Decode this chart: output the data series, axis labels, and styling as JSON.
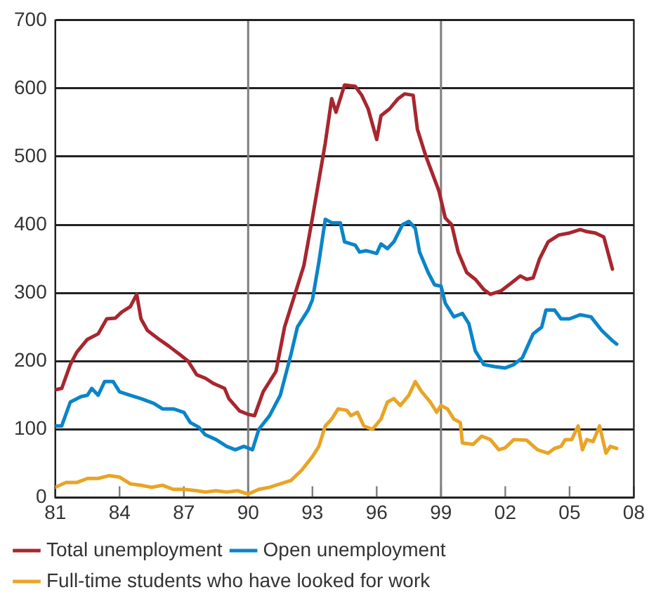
{
  "chart_data": {
    "type": "line",
    "xlim": [
      1981,
      2008
    ],
    "xticks": [
      {
        "value": 1981,
        "label": "81"
      },
      {
        "value": 1984,
        "label": "84"
      },
      {
        "value": 1987,
        "label": "87"
      },
      {
        "value": 1990,
        "label": "90"
      },
      {
        "value": 1993,
        "label": "93"
      },
      {
        "value": 1996,
        "label": "96"
      },
      {
        "value": 1999,
        "label": "99"
      },
      {
        "value": 2002,
        "label": "02"
      },
      {
        "value": 2005,
        "label": "05"
      },
      {
        "value": 2008,
        "label": "08"
      }
    ],
    "ylim": [
      0,
      700
    ],
    "yticks": [
      0,
      100,
      200,
      300,
      400,
      500,
      600,
      700
    ],
    "grid": "y",
    "legend": "bottom",
    "marker": "none",
    "line_style": "solid",
    "ref_lines": [
      {
        "axis": "x",
        "value": 1990,
        "color": "#7f7f7f"
      },
      {
        "axis": "x",
        "value": 1999,
        "color": "#7f7f7f"
      }
    ],
    "series": [
      {
        "name": "Total unemployment",
        "color": "#a8262e",
        "x": [
          1981,
          1981.3,
          1981.7,
          1982,
          1982.5,
          1983,
          1983.4,
          1983.8,
          1984.1,
          1984.5,
          1984.8,
          1985,
          1985.3,
          1985.8,
          1986.3,
          1986.8,
          1987.2,
          1987.6,
          1988,
          1988.4,
          1988.9,
          1989.1,
          1989.6,
          1990,
          1990.3,
          1990.7,
          1991.3,
          1991.7,
          1992.2,
          1992.6,
          1993,
          1993.6,
          1993.9,
          1994.1,
          1994.5,
          1995,
          1995.3,
          1995.6,
          1996,
          1996.2,
          1996.6,
          1997,
          1997.3,
          1997.7,
          1997.9,
          1998.3,
          1998.6,
          1998.9,
          1999.2,
          1999.5,
          1999.8,
          2000.2,
          2000.6,
          2001,
          2001.3,
          2001.8,
          2002.3,
          2002.7,
          2003,
          2003.3,
          2003.6,
          2004,
          2004.5,
          2005,
          2005.5,
          2005.8,
          2006.2,
          2006.6,
          2007
        ],
        "values": [
          158,
          160,
          195,
          213,
          232,
          240,
          262,
          263,
          272,
          280,
          298,
          262,
          245,
          233,
          222,
          210,
          200,
          180,
          175,
          167,
          160,
          145,
          127,
          122,
          120,
          155,
          185,
          250,
          300,
          340,
          410,
          520,
          585,
          565,
          605,
          603,
          590,
          570,
          525,
          560,
          570,
          585,
          592,
          590,
          540,
          500,
          475,
          450,
          410,
          400,
          360,
          330,
          320,
          305,
          298,
          303,
          315,
          325,
          320,
          322,
          350,
          375,
          385,
          388,
          393,
          390,
          388,
          382,
          335
        ]
      },
      {
        "name": "Open unemployment",
        "color": "#0a85c9",
        "x": [
          1981,
          1981.3,
          1981.7,
          1982.2,
          1982.5,
          1982.7,
          1983,
          1983.3,
          1983.7,
          1984,
          1984.5,
          1985,
          1985.6,
          1986,
          1986.5,
          1987,
          1987.3,
          1987.7,
          1988,
          1988.5,
          1989,
          1989.4,
          1989.8,
          1990.2,
          1990.5,
          1991,
          1991.5,
          1992,
          1992.3,
          1992.8,
          1993,
          1993.3,
          1993.6,
          1993.9,
          1994.3,
          1994.5,
          1995,
          1995.2,
          1995.5,
          1996,
          1996.2,
          1996.5,
          1996.8,
          1997.2,
          1997.5,
          1997.8,
          1998,
          1998.4,
          1998.7,
          1999,
          1999.2,
          1999.6,
          2000,
          2000.3,
          2000.6,
          2001,
          2001.5,
          2002,
          2002.4,
          2002.8,
          2003.3,
          2003.7,
          2003.9,
          2004.3,
          2004.6,
          2005,
          2005.5,
          2006,
          2006.5,
          2007,
          2007.2
        ],
        "values": [
          105,
          105,
          140,
          148,
          150,
          160,
          150,
          170,
          170,
          155,
          150,
          145,
          138,
          130,
          130,
          125,
          110,
          103,
          92,
          85,
          75,
          70,
          75,
          70,
          100,
          120,
          150,
          210,
          250,
          275,
          290,
          345,
          408,
          403,
          403,
          375,
          370,
          360,
          362,
          358,
          372,
          365,
          375,
          400,
          405,
          395,
          360,
          330,
          312,
          310,
          285,
          265,
          270,
          255,
          215,
          195,
          192,
          190,
          195,
          205,
          240,
          250,
          275,
          275,
          262,
          262,
          268,
          265,
          245,
          230,
          225
        ]
      },
      {
        "name": "Full-time students who have looked for work",
        "color": "#e9a426",
        "x": [
          1981,
          1981.5,
          1982,
          1982.5,
          1983,
          1983.5,
          1984,
          1984.5,
          1985,
          1985.5,
          1986,
          1986.5,
          1987,
          1987.6,
          1988,
          1988.5,
          1989,
          1989.5,
          1990,
          1990.5,
          1991,
          1991.5,
          1992,
          1992.5,
          1993,
          1993.3,
          1993.6,
          1993.9,
          1994.2,
          1994.6,
          1994.8,
          1995.1,
          1995.4,
          1995.8,
          1996.2,
          1996.5,
          1996.8,
          1997.1,
          1997.5,
          1997.8,
          1998.1,
          1998.5,
          1998.8,
          1999,
          1999.3,
          1999.6,
          1999.9,
          2000,
          2000.5,
          2000.9,
          2001.3,
          2001.7,
          2002,
          2002.4,
          2003,
          2003.5,
          2004,
          2004.3,
          2004.6,
          2004.8,
          2005.1,
          2005.4,
          2005.6,
          2005.8,
          2006.1,
          2006.4,
          2006.7,
          2006.9,
          2007.2
        ],
        "values": [
          15,
          22,
          22,
          28,
          28,
          32,
          30,
          20,
          18,
          15,
          18,
          12,
          12,
          10,
          8,
          10,
          8,
          10,
          5,
          12,
          15,
          20,
          25,
          40,
          60,
          75,
          105,
          115,
          130,
          128,
          120,
          125,
          105,
          100,
          115,
          140,
          145,
          135,
          150,
          170,
          155,
          140,
          125,
          135,
          130,
          115,
          110,
          80,
          78,
          90,
          85,
          70,
          73,
          85,
          84,
          70,
          65,
          72,
          75,
          85,
          85,
          105,
          70,
          85,
          82,
          105,
          65,
          75,
          72
        ]
      }
    ]
  }
}
